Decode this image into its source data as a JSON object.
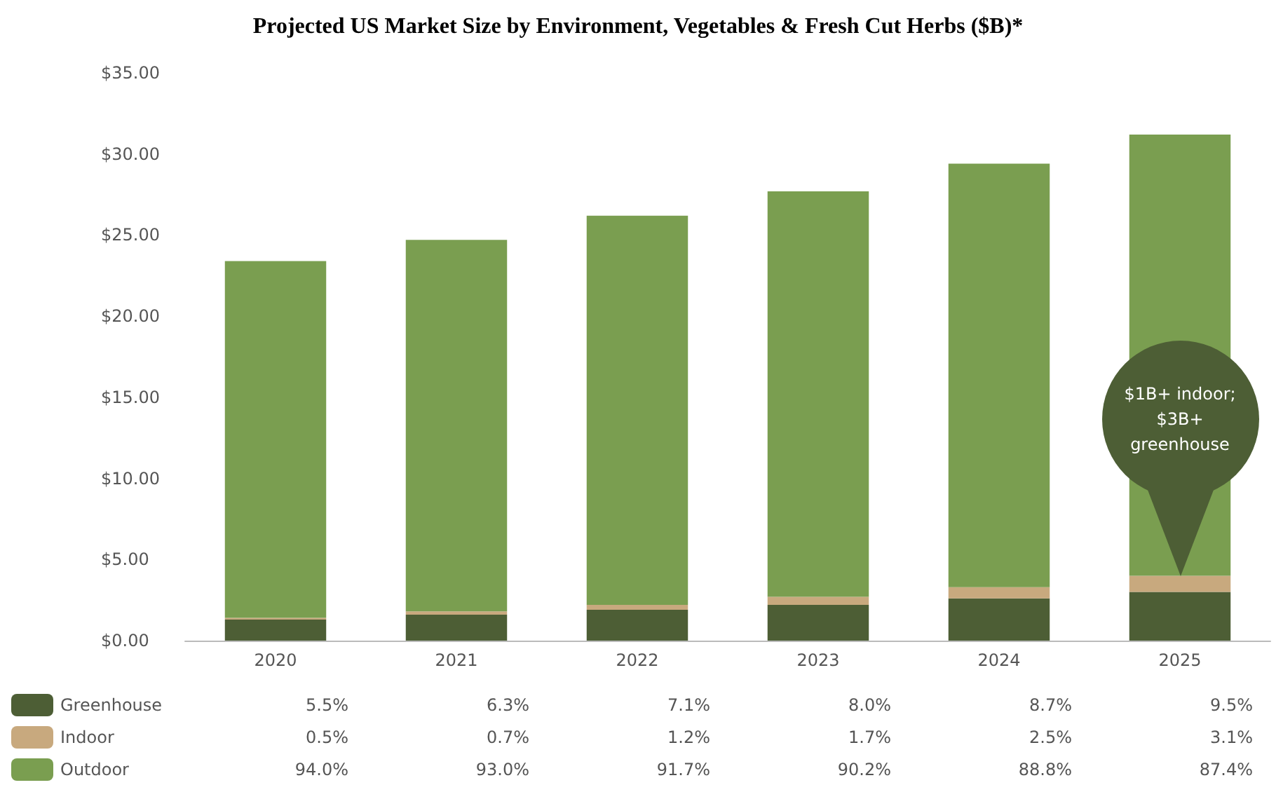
{
  "chart_data": {
    "type": "bar",
    "title": "Projected US Market Size by Environment, Vegetables & Fresh Cut Herbs ($B)*",
    "categories": [
      "2020",
      "2021",
      "2022",
      "2023",
      "2024",
      "2025"
    ],
    "stacked": true,
    "series": [
      {
        "name": "Greenhouse",
        "color": "#4d5e35",
        "values": [
          1.3,
          1.6,
          1.9,
          2.2,
          2.6,
          3.0
        ]
      },
      {
        "name": "Indoor",
        "color": "#c8a97e",
        "values": [
          0.1,
          0.2,
          0.3,
          0.5,
          0.7,
          1.0
        ]
      },
      {
        "name": "Outdoor",
        "color": "#7a9e50",
        "values": [
          22.0,
          22.9,
          24.0,
          25.0,
          26.1,
          27.2
        ]
      }
    ],
    "ylim": [
      0,
      35
    ],
    "yticks": [
      {
        "value": 0,
        "label": "$0.00"
      },
      {
        "value": 5,
        "label": "$5.00"
      },
      {
        "value": 10,
        "label": "$10.00"
      },
      {
        "value": 15,
        "label": "$15.00"
      },
      {
        "value": 20,
        "label": "$20.00"
      },
      {
        "value": 25,
        "label": "$25.00"
      },
      {
        "value": 30,
        "label": "$30.00"
      },
      {
        "value": 35,
        "label": "$35.00"
      }
    ],
    "grid": false,
    "legend": "bottom left",
    "annotations": [
      "$1B+ indoor; $3B+ greenhouse",
      "5.5%",
      "6.3%",
      "7.1%",
      "8.0%",
      "8.7%",
      "9.5%",
      "0.5%",
      "0.7%",
      "1.2%",
      "1.7%",
      "2.5%",
      "3.1%",
      "94.0%",
      "93.0%",
      "91.7%",
      "90.2%",
      "88.8%",
      "87.4%"
    ]
  }
}
